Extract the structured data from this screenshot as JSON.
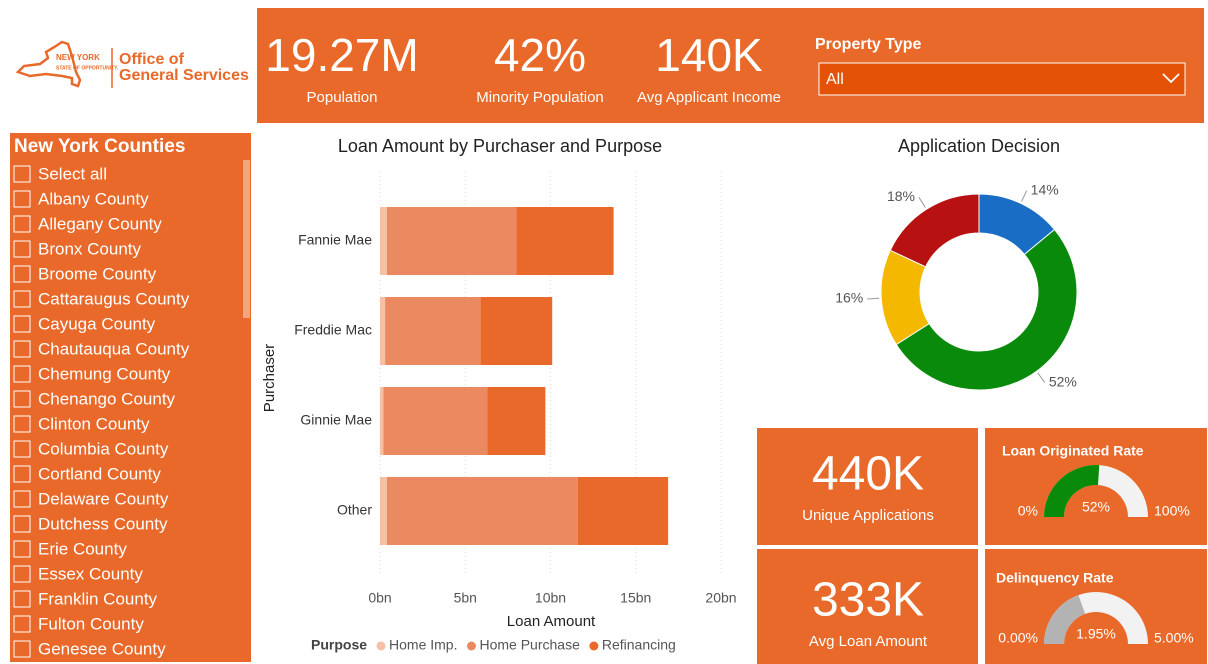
{
  "logo": {
    "state": "NEW YORK",
    "motto": "STATE OF OPPORTUNITY.",
    "line1": "Office of",
    "line2": "General Services"
  },
  "kpis": [
    {
      "value": "19.27M",
      "label": "Population"
    },
    {
      "value": "42%",
      "label": "Minority Population"
    },
    {
      "value": "140K",
      "label": "Avg Applicant Income"
    }
  ],
  "filter": {
    "label": "Property Type",
    "selected": "All"
  },
  "slicer": {
    "title": "New York Counties",
    "select_all": "Select all",
    "items": [
      "Albany County",
      "Allegany County",
      "Bronx County",
      "Broome County",
      "Cattaraugus County",
      "Cayuga County",
      "Chautauqua County",
      "Chemung County",
      "Chenango County",
      "Clinton County",
      "Columbia County",
      "Cortland County",
      "Delaware County",
      "Dutchess County",
      "Erie County",
      "Essex County",
      "Franklin County",
      "Fulton County",
      "Genesee County"
    ]
  },
  "cards": [
    {
      "value": "440K",
      "label": "Unique Applications"
    },
    {
      "value": "333K",
      "label": "Avg Loan Amount"
    }
  ],
  "chart_data": [
    {
      "type": "bar",
      "orientation": "horizontal",
      "stacked": true,
      "title": "Loan Amount by Purchaser and Purpose",
      "x_label": "Loan Amount",
      "y_label": "Purchaser",
      "legend_title": "Purpose",
      "categories": [
        "Fannie Mae",
        "Freddie Mac",
        "Ginnie Mae",
        "Other"
      ],
      "series": [
        {
          "name": "Home Imp.",
          "color": "#f4c1a6",
          "values": [
            0.4,
            0.3,
            0.2,
            0.4
          ]
        },
        {
          "name": "Home Purchase",
          "color": "#eb8a60",
          "values": [
            7.6,
            5.6,
            6.1,
            11.2
          ]
        },
        {
          "name": "Refinancing",
          "color": "#e8692a",
          "values": [
            5.7,
            4.2,
            3.4,
            5.3
          ]
        }
      ],
      "xlim": [
        0,
        20
      ],
      "xticks": [
        {
          "value": 0,
          "label": "0bn"
        },
        {
          "value": 5,
          "label": "5bn"
        },
        {
          "value": 10,
          "label": "10bn"
        },
        {
          "value": 15,
          "label": "15bn"
        },
        {
          "value": 20,
          "label": "20bn"
        }
      ]
    },
    {
      "type": "donut",
      "title": "Application Decision",
      "values": [
        14,
        52,
        16,
        18
      ],
      "value_labels": [
        "14%",
        "52%",
        "16%",
        "18%"
      ],
      "colors": [
        "#1a6dc4",
        "#0a8a0a",
        "#f5b800",
        "#b71111"
      ]
    },
    {
      "type": "gauge",
      "title": "Loan Originated Rate",
      "values": [
        52
      ],
      "value_labels": [
        "52%"
      ],
      "color": "#0a8a0a",
      "ylim": [
        0,
        100
      ],
      "yticks": [
        {
          "value": 0,
          "label": "0%"
        },
        {
          "value": 100,
          "label": "100%"
        }
      ]
    },
    {
      "type": "gauge",
      "title": "Delinquency Rate",
      "values": [
        1.95
      ],
      "value_labels": [
        "1.95%"
      ],
      "color": "#b3b3b3",
      "ylim": [
        0,
        5
      ],
      "yticks": [
        {
          "value": 0,
          "label": "0.00%"
        },
        {
          "value": 5,
          "label": "5.00%"
        }
      ]
    }
  ]
}
